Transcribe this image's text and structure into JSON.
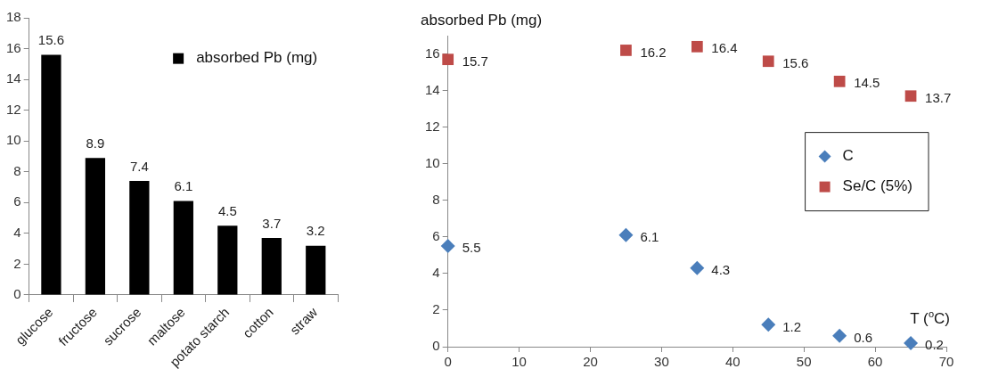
{
  "chart_data": [
    {
      "type": "bar",
      "categories": [
        "glucose",
        "fructose",
        "sucrose",
        "maltose",
        "potato starch",
        "cotton",
        "straw"
      ],
      "series": [
        {
          "name": "absorbed Pb (mg)",
          "color": "#000000",
          "values": [
            15.6,
            8.9,
            7.4,
            6.1,
            4.5,
            3.7,
            3.2
          ]
        }
      ],
      "ylim": [
        0,
        18
      ],
      "yticks": [
        0,
        2,
        4,
        6,
        8,
        10,
        12,
        14,
        16,
        18
      ],
      "grid": false,
      "legend": "top right",
      "data_labels": true
    },
    {
      "type": "scatter",
      "xlabel": "T ($^{o}$C)",
      "ylabel": "absorbed Pb (mg)",
      "series": [
        {
          "name": "C",
          "color": "#4a7ebb",
          "marker": "diamond",
          "x": [
            0,
            25,
            35,
            45,
            55,
            65
          ],
          "values": [
            5.5,
            6.1,
            4.3,
            1.2,
            0.6,
            0.2
          ]
        },
        {
          "name": "Se/C (5%)",
          "color": "#be4b48",
          "marker": "square",
          "x": [
            0,
            25,
            35,
            45,
            55,
            65
          ],
          "values": [
            15.7,
            16.2,
            16.4,
            15.6,
            14.5,
            13.7
          ]
        }
      ],
      "xlim": [
        0,
        70
      ],
      "xticks": [
        0,
        10,
        20,
        30,
        40,
        50,
        60,
        70
      ],
      "ylim": [
        0,
        17
      ],
      "yticks": [
        0,
        2,
        4,
        6,
        8,
        10,
        12,
        14,
        16
      ],
      "grid": false,
      "legend": "right",
      "data_labels": true
    }
  ]
}
